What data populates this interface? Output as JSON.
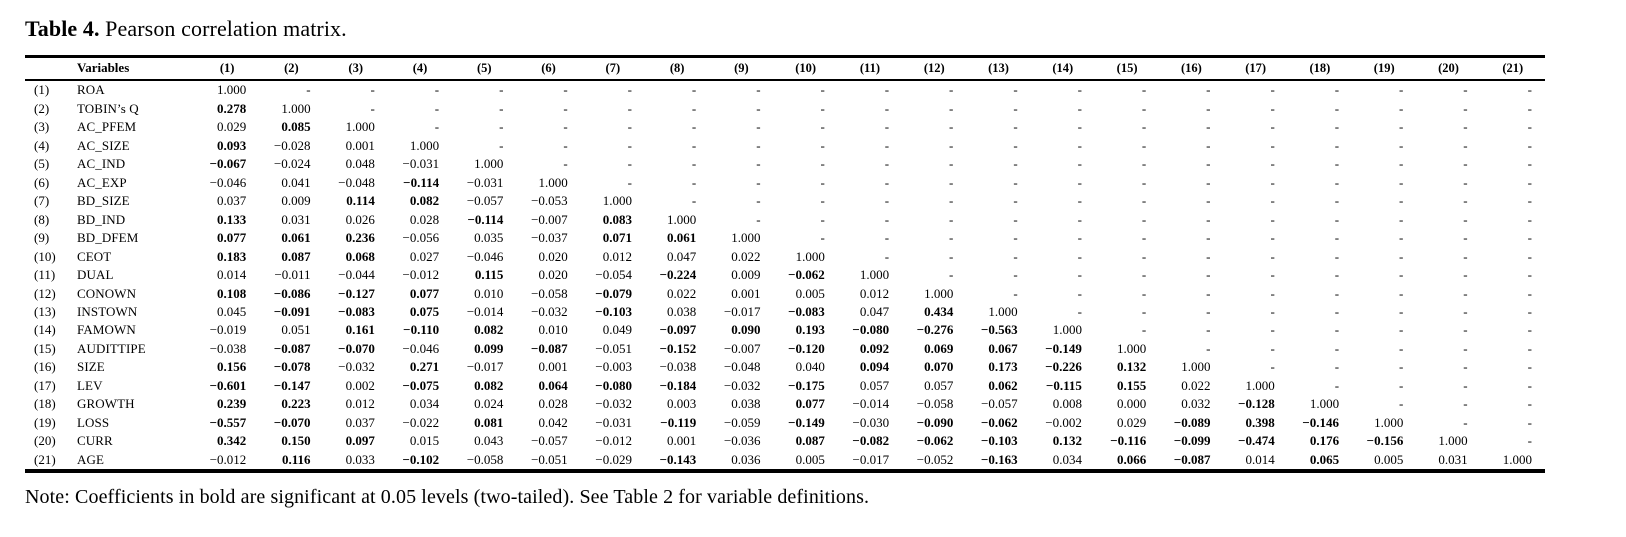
{
  "title": {
    "label": "Table 4.",
    "rest": " Pearson correlation matrix."
  },
  "note": "Note: Coefficients in bold are significant at 0.05 levels (two-tailed). See Table 2 for variable definitions.",
  "table": {
    "corner_header": "",
    "variables_header": "Variables",
    "col_headers": [
      "(1)",
      "(2)",
      "(3)",
      "(4)",
      "(5)",
      "(6)",
      "(7)",
      "(8)",
      "(9)",
      "(10)",
      "(11)",
      "(12)",
      "(13)",
      "(14)",
      "(15)",
      "(16)",
      "(17)",
      "(18)",
      "(19)",
      "(20)",
      "(21)"
    ],
    "empty_cell": "-",
    "bold_note_threshold": "0.05",
    "rows": [
      {
        "num": "(1)",
        "name": "ROA",
        "values": [
          "1.000"
        ],
        "bold": []
      },
      {
        "num": "(2)",
        "name": "TOBIN’s Q",
        "values": [
          "0.278",
          "1.000"
        ],
        "bold": [
          1
        ]
      },
      {
        "num": "(3)",
        "name": "AC_PFEM",
        "values": [
          "0.029",
          "0.085",
          "1.000"
        ],
        "bold": [
          2
        ]
      },
      {
        "num": "(4)",
        "name": "AC_SIZE",
        "values": [
          "0.093",
          "−0.028",
          "0.001",
          "1.000"
        ],
        "bold": [
          1
        ]
      },
      {
        "num": "(5)",
        "name": "AC_IND",
        "values": [
          "−0.067",
          "−0.024",
          "0.048",
          "−0.031",
          "1.000"
        ],
        "bold": [
          1
        ]
      },
      {
        "num": "(6)",
        "name": "AC_EXP",
        "values": [
          "−0.046",
          "0.041",
          "−0.048",
          "−0.114",
          "−0.031",
          "1.000"
        ],
        "bold": [
          4
        ]
      },
      {
        "num": "(7)",
        "name": "BD_SIZE",
        "values": [
          "0.037",
          "0.009",
          "0.114",
          "0.082",
          "−0.057",
          "−0.053",
          "1.000"
        ],
        "bold": [
          3,
          4
        ]
      },
      {
        "num": "(8)",
        "name": "BD_IND",
        "values": [
          "0.133",
          "0.031",
          "0.026",
          "0.028",
          "−0.114",
          "−0.007",
          "0.083",
          "1.000"
        ],
        "bold": [
          1,
          5,
          7
        ]
      },
      {
        "num": "(9)",
        "name": "BD_DFEM",
        "values": [
          "0.077",
          "0.061",
          "0.236",
          "−0.056",
          "0.035",
          "−0.037",
          "0.071",
          "0.061",
          "1.000"
        ],
        "bold": [
          1,
          2,
          3,
          7,
          8
        ]
      },
      {
        "num": "(10)",
        "name": "CEOT",
        "values": [
          "0.183",
          "0.087",
          "0.068",
          "0.027",
          "−0.046",
          "0.020",
          "0.012",
          "0.047",
          "0.022",
          "1.000"
        ],
        "bold": [
          1,
          2,
          3
        ]
      },
      {
        "num": "(11)",
        "name": "DUAL",
        "values": [
          "0.014",
          "−0.011",
          "−0.044",
          "−0.012",
          "0.115",
          "0.020",
          "−0.054",
          "−0.224",
          "0.009",
          "−0.062",
          "1.000"
        ],
        "bold": [
          5,
          8,
          10
        ]
      },
      {
        "num": "(12)",
        "name": "CONOWN",
        "values": [
          "0.108",
          "−0.086",
          "−0.127",
          "0.077",
          "0.010",
          "−0.058",
          "−0.079",
          "0.022",
          "0.001",
          "0.005",
          "0.012",
          "1.000"
        ],
        "bold": [
          1,
          2,
          3,
          4,
          7
        ]
      },
      {
        "num": "(13)",
        "name": "INSTOWN",
        "values": [
          "0.045",
          "−0.091",
          "−0.083",
          "0.075",
          "−0.014",
          "−0.032",
          "−0.103",
          "0.038",
          "−0.017",
          "−0.083",
          "0.047",
          "0.434",
          "1.000"
        ],
        "bold": [
          2,
          3,
          4,
          7,
          10,
          12
        ]
      },
      {
        "num": "(14)",
        "name": "FAMOWN",
        "values": [
          "−0.019",
          "0.051",
          "0.161",
          "−0.110",
          "0.082",
          "0.010",
          "0.049",
          "−0.097",
          "0.090",
          "0.193",
          "−0.080",
          "−0.276",
          "−0.563",
          "1.000"
        ],
        "bold": [
          3,
          4,
          5,
          8,
          9,
          10,
          11,
          12,
          13
        ]
      },
      {
        "num": "(15)",
        "name": "AUDITTIPE",
        "values": [
          "−0.038",
          "−0.087",
          "−0.070",
          "−0.046",
          "0.099",
          "−0.087",
          "−0.051",
          "−0.152",
          "−0.007",
          "−0.120",
          "0.092",
          "0.069",
          "0.067",
          "−0.149",
          "1.000"
        ],
        "bold": [
          2,
          3,
          5,
          6,
          8,
          10,
          11,
          12,
          13,
          14
        ]
      },
      {
        "num": "(16)",
        "name": "SIZE",
        "values": [
          "0.156",
          "−0.078",
          "−0.032",
          "0.271",
          "−0.017",
          "0.001",
          "−0.003",
          "−0.038",
          "−0.048",
          "0.040",
          "0.094",
          "0.070",
          "0.173",
          "−0.226",
          "0.132",
          "1.000"
        ],
        "bold": [
          1,
          2,
          4,
          11,
          12,
          13,
          14,
          15
        ]
      },
      {
        "num": "(17)",
        "name": "LEV",
        "values": [
          "−0.601",
          "−0.147",
          "0.002",
          "−0.075",
          "0.082",
          "0.064",
          "−0.080",
          "−0.184",
          "−0.032",
          "−0.175",
          "0.057",
          "0.057",
          "0.062",
          "−0.115",
          "0.155",
          "0.022",
          "1.000"
        ],
        "bold": [
          1,
          2,
          4,
          5,
          6,
          7,
          8,
          10,
          13,
          14,
          15
        ]
      },
      {
        "num": "(18)",
        "name": "GROWTH",
        "values": [
          "0.239",
          "0.223",
          "0.012",
          "0.034",
          "0.024",
          "0.028",
          "−0.032",
          "0.003",
          "0.038",
          "0.077",
          "−0.014",
          "−0.058",
          "−0.057",
          "0.008",
          "0.000",
          "0.032",
          "−0.128",
          "1.000"
        ],
        "bold": [
          1,
          2,
          10,
          17
        ]
      },
      {
        "num": "(19)",
        "name": "LOSS",
        "values": [
          "−0.557",
          "−0.070",
          "0.037",
          "−0.022",
          "0.081",
          "0.042",
          "−0.031",
          "−0.119",
          "−0.059",
          "−0.149",
          "−0.030",
          "−0.090",
          "−0.062",
          "−0.002",
          "0.029",
          "−0.089",
          "0.398",
          "−0.146",
          "1.000"
        ],
        "bold": [
          1,
          2,
          5,
          8,
          10,
          12,
          13,
          16,
          17,
          18
        ]
      },
      {
        "num": "(20)",
        "name": "CURR",
        "values": [
          "0.342",
          "0.150",
          "0.097",
          "0.015",
          "0.043",
          "−0.057",
          "−0.012",
          "0.001",
          "−0.036",
          "0.087",
          "−0.082",
          "−0.062",
          "−0.103",
          "0.132",
          "−0.116",
          "−0.099",
          "−0.474",
          "0.176",
          "−0.156",
          "1.000"
        ],
        "bold": [
          1,
          2,
          3,
          10,
          11,
          12,
          13,
          14,
          15,
          16,
          17,
          18,
          19
        ]
      },
      {
        "num": "(21)",
        "name": "AGE",
        "values": [
          "−0.012",
          "0.116",
          "0.033",
          "−0.102",
          "−0.058",
          "−0.051",
          "−0.029",
          "−0.143",
          "0.036",
          "0.005",
          "−0.017",
          "−0.052",
          "−0.163",
          "0.034",
          "0.066",
          "−0.087",
          "0.014",
          "0.065",
          "0.005",
          "0.031",
          "1.000"
        ],
        "bold": [
          2,
          4,
          8,
          13,
          15,
          16,
          18
        ]
      }
    ]
  }
}
